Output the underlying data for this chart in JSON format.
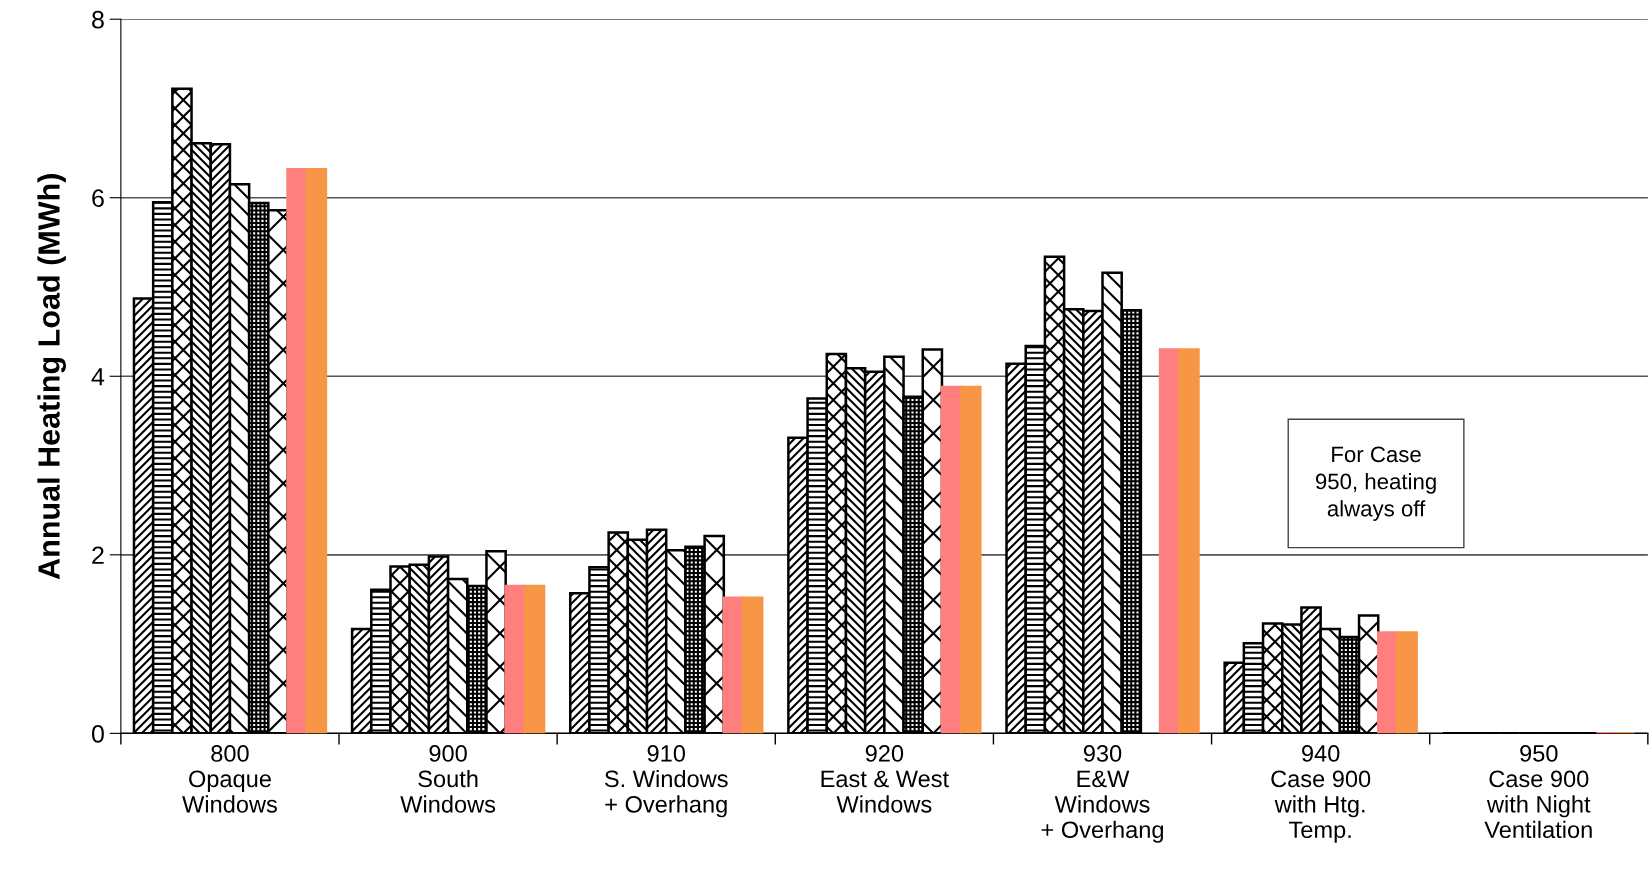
{
  "chart_data": {
    "type": "bar",
    "ylabel": "Annual Heating Load (MWh)",
    "categories": [
      "800\nOpaque\nWindows",
      "900\nSouth\nWindows",
      "910\nS. Windows\n+ Overhang",
      "920\nEast & West\nWindows",
      "930\nE&W\nWindows\n+ Overhang",
      "940\nCase 900\nwith Htg.\nTemp.",
      "950\nCase 900\nwith Night\nVentilation"
    ],
    "series": [
      {
        "color": "#000000",
        "values": [
          4.87,
          1.17,
          1.57,
          3.31,
          4.14,
          0.79,
          0
        ]
      },
      {
        "color": "#000000",
        "values": [
          5.95,
          1.61,
          1.86,
          3.75,
          4.34,
          1.01,
          0
        ]
      },
      {
        "color": "#000000",
        "values": [
          7.22,
          1.87,
          2.25,
          4.25,
          5.34,
          1.23,
          0
        ]
      },
      {
        "color": "#000000",
        "values": [
          6.61,
          1.89,
          2.17,
          4.09,
          4.75,
          1.22,
          0
        ]
      },
      {
        "color": "#000000",
        "values": [
          6.6,
          1.98,
          2.28,
          4.05,
          4.73,
          1.41,
          0
        ]
      },
      {
        "color": "#000000",
        "values": [
          6.15,
          1.73,
          2.05,
          4.22,
          5.16,
          1.17,
          0
        ]
      },
      {
        "color": "#000000",
        "values": [
          5.94,
          1.65,
          2.09,
          3.77,
          4.74,
          1.08,
          0
        ]
      },
      {
        "color": "#000000",
        "values": [
          5.86,
          2.04,
          2.21,
          4.3,
          null,
          1.32,
          0
        ]
      },
      {
        "color": "#ff7f7f",
        "values": [
          6.32,
          1.65,
          1.52,
          3.88,
          4.3,
          1.13,
          0
        ]
      },
      {
        "color": "#f79646",
        "values": [
          6.32,
          1.65,
          1.52,
          3.88,
          4.3,
          1.13,
          0
        ]
      }
    ],
    "ylim": [
      0,
      8
    ],
    "yticks": [
      0,
      2,
      4,
      6,
      8
    ],
    "grid": "y",
    "annotations": [
      "For Case\n950, heating\nalways off"
    ]
  }
}
